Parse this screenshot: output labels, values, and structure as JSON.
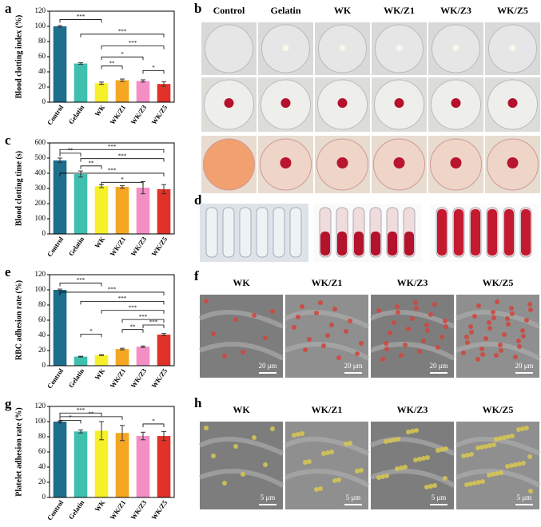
{
  "chart_data": [
    {
      "type": "bar",
      "letter": "a",
      "y_label": "Blood clotting index (%)",
      "categories": [
        "Control",
        "Gelatin",
        "WK",
        "WK/Z1",
        "WK/Z3",
        "WK/Z5"
      ],
      "values": [
        100,
        51,
        25,
        29,
        28,
        24
      ],
      "errors": [
        1,
        1,
        1.5,
        1.5,
        1.5,
        3
      ],
      "colors": [
        "#1f6e8c",
        "#3fbfae",
        "#f5f02a",
        "#f5a623",
        "#f48fc6",
        "#e03228"
      ],
      "ylim": [
        0,
        120
      ],
      "yticks": [
        0,
        20,
        40,
        60,
        80,
        100,
        120
      ],
      "annotations": [
        "***",
        "***",
        "***",
        "**",
        "*",
        "*"
      ]
    },
    {
      "type": "bar",
      "letter": "c",
      "y_label": "Blood clotting time (s)",
      "categories": [
        "Control",
        "Gelatin",
        "WK",
        "WK/Z1",
        "WK/Z3",
        "WK/Z5"
      ],
      "values": [
        485,
        395,
        315,
        310,
        305,
        295
      ],
      "errors": [
        15,
        20,
        10,
        8,
        40,
        30
      ],
      "colors": [
        "#1f6e8c",
        "#3fbfae",
        "#f5f02a",
        "#f5a623",
        "#f48fc6",
        "#e03228"
      ],
      "ylim": [
        0,
        600
      ],
      "yticks": [
        0,
        100,
        200,
        300,
        400,
        500,
        600
      ],
      "annotations": [
        "**",
        "***",
        "**",
        "***",
        "***",
        "*"
      ]
    },
    {
      "type": "bar",
      "letter": "e",
      "y_label": "RBC adhesion rate (%)",
      "categories": [
        "Control",
        "Gelatin",
        "WK",
        "WK/Z1",
        "WK/Z3",
        "WK/Z5"
      ],
      "values": [
        100,
        12,
        14,
        22,
        25,
        41
      ],
      "errors": [
        1,
        0.5,
        0.5,
        1,
        1,
        1.5
      ],
      "colors": [
        "#1f6e8c",
        "#3fbfae",
        "#f5f02a",
        "#f5a623",
        "#f48fc6",
        "#e03228"
      ],
      "ylim": [
        0,
        120
      ],
      "yticks": [
        0,
        20,
        40,
        60,
        80,
        100,
        120
      ],
      "annotations": [
        "***",
        "***",
        "***",
        "***",
        "*",
        "**",
        "***",
        "***"
      ]
    },
    {
      "type": "bar",
      "letter": "g",
      "y_label": "Platelet adhesion rate (%)",
      "categories": [
        "Control",
        "Gelatin",
        "WK",
        "WK/Z1",
        "WK/Z3",
        "WK/Z5"
      ],
      "values": [
        100,
        87,
        88,
        85,
        81,
        81
      ],
      "errors": [
        1,
        2,
        12,
        10,
        5,
        6
      ],
      "colors": [
        "#1f6e8c",
        "#3fbfae",
        "#f5f02a",
        "#f5a623",
        "#f48fc6",
        "#e03228"
      ],
      "ylim": [
        0,
        120
      ],
      "yticks": [
        0,
        20,
        40,
        60,
        80,
        100,
        120
      ],
      "annotations": [
        "***",
        "*",
        "**",
        "*"
      ]
    }
  ],
  "panel_b": {
    "letter": "b",
    "columns": [
      "Control",
      "Gelatin",
      "WK",
      "WK/Z1",
      "WK/Z3",
      "WK/Z5"
    ]
  },
  "panel_d": {
    "letter": "d"
  },
  "panel_f": {
    "letter": "f",
    "columns": [
      "WK",
      "WK/Z1",
      "WK/Z3",
      "WK/Z5"
    ],
    "scale_bar": "20 μm"
  },
  "panel_h": {
    "letter": "h",
    "columns": [
      "WK",
      "WK/Z1",
      "WK/Z3",
      "WK/Z5"
    ],
    "scale_bar": "5 μm"
  }
}
